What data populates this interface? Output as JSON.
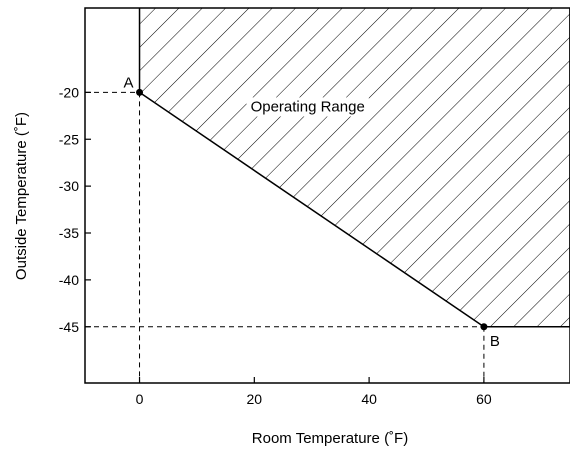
{
  "chart_data": {
    "type": "area",
    "xlabel": "Room Temperature (˚F)",
    "ylabel": "Outside Temperature (˚F)",
    "xlim": [
      -9.5,
      75
    ],
    "ylim": [
      -51,
      -11
    ],
    "x_ticks": [
      0,
      20,
      40,
      60
    ],
    "x_tick_labels": [
      "0",
      "20",
      "40",
      "60"
    ],
    "y_ticks": [
      -20,
      -25,
      -30,
      -35,
      -40,
      -45
    ],
    "y_tick_labels": [
      "-20",
      "-25",
      "-30",
      "-35",
      "-40",
      "-45"
    ],
    "grid": false,
    "region": {
      "label": "Operating Range",
      "fill": "hatched",
      "boundary": [
        {
          "x": 0,
          "y": -11
        },
        {
          "x": 0,
          "y": -20
        },
        {
          "x": 60,
          "y": -45
        },
        {
          "x": 75,
          "y": -45
        },
        {
          "x": 75,
          "y": -11
        }
      ]
    },
    "points": [
      {
        "label": "A",
        "x": 0,
        "y": -20
      },
      {
        "label": "B",
        "x": 60,
        "y": -45
      }
    ],
    "colors": {
      "line": "#000000",
      "background": "#ffffff"
    }
  }
}
